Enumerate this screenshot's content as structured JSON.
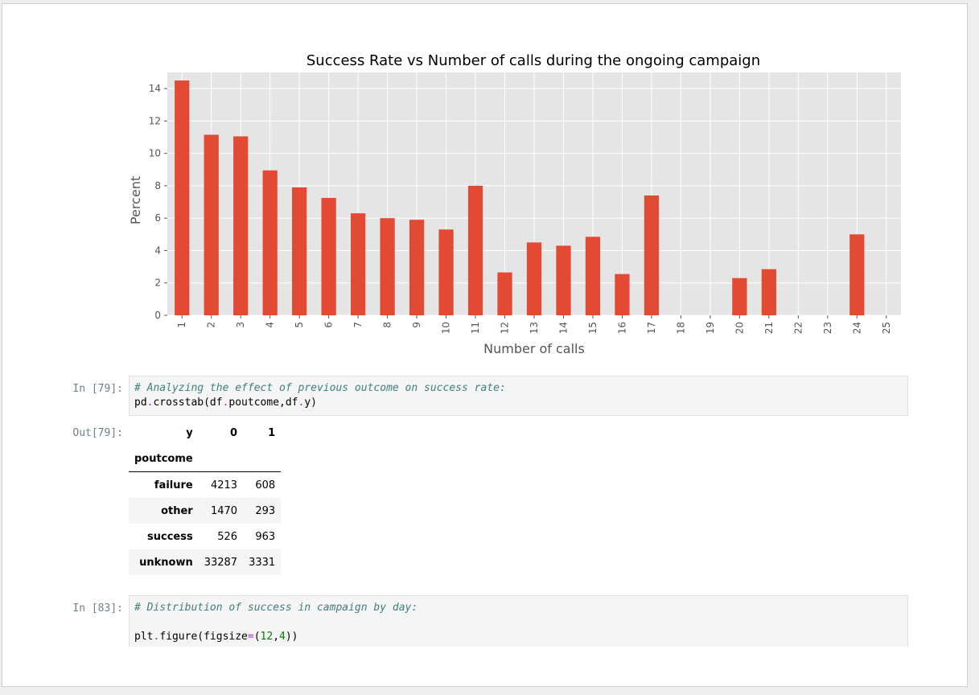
{
  "chart_data": {
    "type": "bar",
    "title": "Success Rate vs Number of calls during the ongoing campaign",
    "xlabel": "Number of calls",
    "ylabel": "Percent",
    "categories": [
      "1",
      "2",
      "3",
      "4",
      "5",
      "6",
      "7",
      "8",
      "9",
      "10",
      "11",
      "12",
      "13",
      "14",
      "15",
      "16",
      "17",
      "18",
      "19",
      "20",
      "21",
      "22",
      "23",
      "24",
      "25"
    ],
    "values": [
      14.5,
      11.15,
      11.05,
      8.95,
      7.9,
      7.25,
      6.3,
      6.0,
      5.9,
      5.3,
      8.0,
      2.65,
      4.5,
      4.3,
      4.85,
      2.55,
      7.4,
      0,
      0,
      2.3,
      2.85,
      0,
      0,
      5.0,
      0
    ],
    "ylim": [
      0,
      15.0
    ],
    "yticks": [
      0,
      2,
      4,
      6,
      8,
      10,
      12,
      14
    ],
    "grid": true,
    "bar_color": "#e24a33",
    "background": "#e5e5e5"
  },
  "cells": [
    {
      "prompt": "In [79]:",
      "lines": [
        [
          {
            "t": "# Analyzing the effect of previous outcome on success rate:",
            "c": "cmt"
          }
        ],
        [
          {
            "t": "pd",
            "c": ""
          },
          {
            "t": ".",
            "c": "op"
          },
          {
            "t": "crosstab(df",
            "c": ""
          },
          {
            "t": ".",
            "c": "op"
          },
          {
            "t": "poutcome,df",
            "c": ""
          },
          {
            "t": ".",
            "c": "op"
          },
          {
            "t": "y)",
            "c": ""
          }
        ]
      ]
    },
    {
      "prompt": "In [83]:",
      "lines": [
        [
          {
            "t": "# Distribution of success in campaign by day:",
            "c": "cmt"
          }
        ],
        [
          {
            "t": "",
            "c": ""
          }
        ],
        [
          {
            "t": "plt",
            "c": ""
          },
          {
            "t": ".",
            "c": "op"
          },
          {
            "t": "figure(figsize",
            "c": ""
          },
          {
            "t": "=",
            "c": "op"
          },
          {
            "t": "(",
            "c": ""
          },
          {
            "t": "12",
            "c": "num"
          },
          {
            "t": ",",
            "c": ""
          },
          {
            "t": "4",
            "c": "num"
          },
          {
            "t": "))",
            "c": ""
          }
        ]
      ]
    }
  ],
  "output": {
    "prompt": "Out[79]:",
    "col_header_label": "y",
    "columns": [
      "0",
      "1"
    ],
    "index_label": "poutcome",
    "rows": [
      {
        "label": "failure",
        "values": [
          "4213",
          "608"
        ]
      },
      {
        "label": "other",
        "values": [
          "1470",
          "293"
        ]
      },
      {
        "label": "success",
        "values": [
          "526",
          "963"
        ]
      },
      {
        "label": "unknown",
        "values": [
          "33287",
          "3331"
        ]
      }
    ]
  }
}
